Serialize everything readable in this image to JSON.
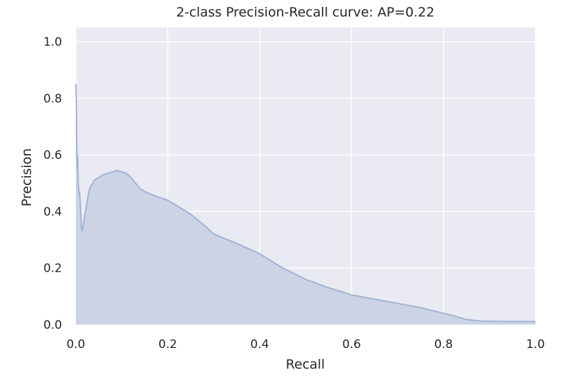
{
  "chart_data": {
    "type": "area",
    "title": "2-class Precision-Recall curve: AP=0.22",
    "xlabel": "Recall",
    "ylabel": "Precision",
    "xlim": [
      0.0,
      1.0
    ],
    "ylim": [
      0.0,
      1.05
    ],
    "xticks": [
      "0.0",
      "0.2",
      "0.4",
      "0.6",
      "0.8",
      "1.0"
    ],
    "yticks": [
      "0.0",
      "0.2",
      "0.4",
      "0.6",
      "0.8",
      "1.0"
    ],
    "grid": true,
    "background_color": "#eaeaf2",
    "grid_color": "#ffffff",
    "line_color": "#9fb3d6",
    "fill_color": "#cbd3e5",
    "series": [
      {
        "x": [
          0.0,
          0.001,
          0.002,
          0.003,
          0.004,
          0.005,
          0.006,
          0.007,
          0.008,
          0.01,
          0.012,
          0.014,
          0.016,
          0.02,
          0.025,
          0.03,
          0.04,
          0.05,
          0.06,
          0.07,
          0.08,
          0.09,
          0.1,
          0.11,
          0.12,
          0.13,
          0.14,
          0.15,
          0.18,
          0.2,
          0.22,
          0.25,
          0.28,
          0.3,
          0.33,
          0.36,
          0.4,
          0.45,
          0.5,
          0.55,
          0.6,
          0.65,
          0.7,
          0.75,
          0.78,
          0.8,
          0.82,
          0.85,
          0.88,
          0.9,
          0.95,
          1.0
        ],
        "y": [
          0.85,
          0.8,
          0.65,
          0.55,
          0.6,
          0.52,
          0.48,
          0.46,
          0.47,
          0.42,
          0.35,
          0.33,
          0.35,
          0.39,
          0.44,
          0.48,
          0.51,
          0.52,
          0.53,
          0.535,
          0.54,
          0.545,
          0.54,
          0.535,
          0.52,
          0.5,
          0.48,
          0.47,
          0.45,
          0.44,
          0.42,
          0.39,
          0.35,
          0.32,
          0.3,
          0.28,
          0.25,
          0.2,
          0.16,
          0.13,
          0.105,
          0.09,
          0.075,
          0.06,
          0.048,
          0.04,
          0.032,
          0.018,
          0.013,
          0.012,
          0.011,
          0.011
        ]
      }
    ]
  }
}
